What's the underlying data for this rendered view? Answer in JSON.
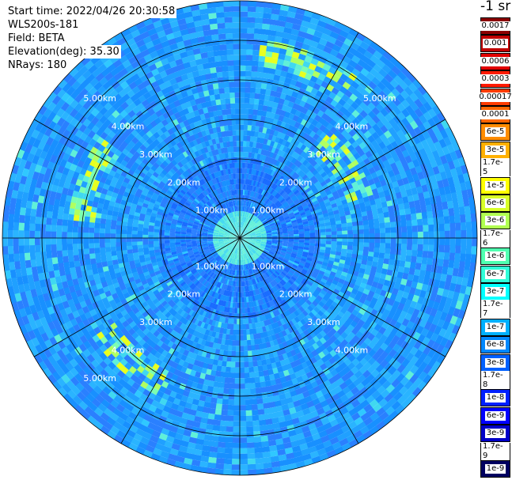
{
  "info": {
    "start_time": "Start time: 2022/04/26 20:30:58",
    "instrument": "WLS200s-181",
    "field": "Field: BETA",
    "elevation": "Elevation(deg): 35.30",
    "nrays": "NRays: 180"
  },
  "colorbar": {
    "unit": "-1 sr",
    "labels": [
      "0.0017",
      "0.001",
      "0.0006",
      "0.0003",
      "0.00017",
      "0.0001",
      "6e-5",
      "3e-5",
      "1.7e-5",
      "1e-5",
      "6e-6",
      "3e-6",
      "1.7e-6",
      "1e-6",
      "6e-7",
      "3e-7",
      "1.7e-7",
      "1e-7",
      "6e-8",
      "3e-8",
      "1.7e-8",
      "1e-8",
      "6e-9",
      "3e-9",
      "1.7e-9",
      "1e-9"
    ],
    "colors": [
      "#8b0000",
      "#c00000",
      "#e00000",
      "#ff1a00",
      "#ff3c00",
      "#ff6600",
      "#ff8c00",
      "#ffb000",
      "#ffd700",
      "#ffff00",
      "#d8ff28",
      "#b0ff50",
      "#80ff80",
      "#50ffb0",
      "#30ffd8",
      "#00ffff",
      "#00d8ff",
      "#00b0ff",
      "#0088ff",
      "#0060ff",
      "#0040ff",
      "#0020ff",
      "#0000ff",
      "#0000c8",
      "#000090",
      "#000060"
    ]
  },
  "chart_data": {
    "type": "heatmap",
    "projection": "polar (PPI scan)",
    "title": "",
    "range_rings": [
      "1.00km",
      "2.00km",
      "3.00km",
      "4.00km",
      "5.00km"
    ],
    "ring_values_km": [
      1,
      2,
      3,
      4,
      5
    ],
    "max_range_km": 6.0,
    "n_rays": 180,
    "radial_grid_spacing_deg": 30,
    "colorscale": "log jet, 1e-9 to 0.0017 sr-1",
    "dominant_value": "3e-8",
    "near_field_value": "1.7e-7",
    "enhanced_bands": [
      {
        "azimuth_deg": 290,
        "range_km": 4.0,
        "value": "1e-5"
      },
      {
        "azimuth_deg": 220,
        "range_km": 4.2,
        "value": "1e-5"
      },
      {
        "azimuth_deg": 20,
        "range_km": 4.7,
        "value": "1.7e-6"
      },
      {
        "azimuth_deg": 55,
        "range_km": 3.2,
        "value": "1.7e-6"
      }
    ]
  }
}
